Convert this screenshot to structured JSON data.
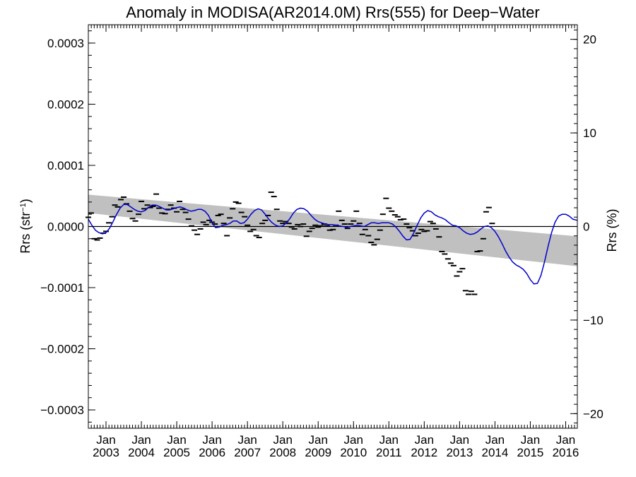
{
  "chart_data": {
    "type": "line",
    "title": "Anomaly in MODISA(AR2014.0M) Rrs(555) for Deep−Water",
    "ylabel_left": {
      "base": "Rrs (str",
      "sup": "−1",
      "close": ")"
    },
    "ylabel_right": "Rrs (%)",
    "x_range": [
      2002.5,
      2016.33
    ],
    "ylim_left": [
      -0.00033,
      0.00033
    ],
    "ylim_right": [
      -21.56,
      21.56
    ],
    "left_ticks": [
      {
        "value": 0.0003,
        "label": "0.0003"
      },
      {
        "value": 0.0002,
        "label": "0.0002"
      },
      {
        "value": 0.0001,
        "label": "0.0001"
      },
      {
        "value": 0.0,
        "label": "0.0000"
      },
      {
        "value": -0.0001,
        "label": "−0.0001"
      },
      {
        "value": -0.0002,
        "label": "−0.0002"
      },
      {
        "value": -0.0003,
        "label": "−0.0003"
      }
    ],
    "right_ticks": [
      {
        "value": 20,
        "label": "20"
      },
      {
        "value": 10,
        "label": "10"
      },
      {
        "value": 0,
        "label": "0"
      },
      {
        "value": -10,
        "label": "−10"
      },
      {
        "value": -20,
        "label": "−20"
      }
    ],
    "x_ticks": [
      {
        "value": 2003,
        "month": "Jan",
        "year": "2003"
      },
      {
        "value": 2004,
        "month": "Jan",
        "year": "2004"
      },
      {
        "value": 2005,
        "month": "Jan",
        "year": "2005"
      },
      {
        "value": 2006,
        "month": "Jan",
        "year": "2006"
      },
      {
        "value": 2007,
        "month": "Jan",
        "year": "2007"
      },
      {
        "value": 2008,
        "month": "Jan",
        "year": "2008"
      },
      {
        "value": 2009,
        "month": "Jan",
        "year": "2009"
      },
      {
        "value": 2010,
        "month": "Jan",
        "year": "2010"
      },
      {
        "value": 2011,
        "month": "Jan",
        "year": "2011"
      },
      {
        "value": 2012,
        "month": "Jan",
        "year": "2012"
      },
      {
        "value": 2013,
        "month": "Jan",
        "year": "2013"
      },
      {
        "value": 2014,
        "month": "Jan",
        "year": "2014"
      },
      {
        "value": 2015,
        "month": "Jan",
        "year": "2015"
      },
      {
        "value": 2016,
        "month": "Jan",
        "year": "2016"
      }
    ],
    "trend_band": {
      "color": "#c0c0c0",
      "upper": [
        [
          2002.5,
          5.2e-05
        ],
        [
          2016.33,
          -1.6e-05
        ]
      ],
      "lower": [
        [
          2002.5,
          2.2e-05
        ],
        [
          2016.33,
          -6.5e-05
        ]
      ]
    },
    "zero_line": {
      "value": 0.0,
      "color": "#000000"
    },
    "smoothed": {
      "color": "#0000cc",
      "points": [
        [
          2002.5,
          1.2e-05
        ],
        [
          2002.6,
          2e-06
        ],
        [
          2002.7,
          -6e-06
        ],
        [
          2002.8,
          -1e-05
        ],
        [
          2002.9,
          -1.2e-05
        ],
        [
          2003.0,
          -1e-05
        ],
        [
          2003.1,
          -3e-06
        ],
        [
          2003.2,
          8e-06
        ],
        [
          2003.3,
          2e-05
        ],
        [
          2003.4,
          3e-05
        ],
        [
          2003.5,
          3.6e-05
        ],
        [
          2003.6,
          3.6e-05
        ],
        [
          2003.7,
          3.2e-05
        ],
        [
          2003.8,
          2.8e-05
        ],
        [
          2003.9,
          2.5e-05
        ],
        [
          2004.0,
          2.4e-05
        ],
        [
          2004.1,
          2.6e-05
        ],
        [
          2004.2,
          3.1e-05
        ],
        [
          2004.3,
          3.5e-05
        ],
        [
          2004.4,
          3.5e-05
        ],
        [
          2004.5,
          3.3e-05
        ],
        [
          2004.6,
          3e-05
        ],
        [
          2004.7,
          2.7e-05
        ],
        [
          2004.8,
          2.7e-05
        ],
        [
          2004.9,
          2.9e-05
        ],
        [
          2005.0,
          3.1e-05
        ],
        [
          2005.1,
          3.2e-05
        ],
        [
          2005.2,
          3e-05
        ],
        [
          2005.3,
          2.7e-05
        ],
        [
          2005.4,
          2.5e-05
        ],
        [
          2005.5,
          2.6e-05
        ],
        [
          2005.6,
          2.8e-05
        ],
        [
          2005.7,
          2.8e-05
        ],
        [
          2005.8,
          2.5e-05
        ],
        [
          2005.9,
          1.8e-05
        ],
        [
          2006.0,
          6e-06
        ],
        [
          2006.1,
          -2e-06
        ],
        [
          2006.2,
          -1e-06
        ],
        [
          2006.3,
          2e-06
        ],
        [
          2006.4,
          3e-06
        ],
        [
          2006.5,
          5e-06
        ],
        [
          2006.6,
          9e-06
        ],
        [
          2006.7,
          9e-06
        ],
        [
          2006.8,
          5e-06
        ],
        [
          2006.9,
          6e-06
        ],
        [
          2007.0,
          1.2e-05
        ],
        [
          2007.1,
          2e-05
        ],
        [
          2007.2,
          2.6e-05
        ],
        [
          2007.3,
          2.9e-05
        ],
        [
          2007.4,
          2.7e-05
        ],
        [
          2007.5,
          2e-05
        ],
        [
          2007.6,
          1.2e-05
        ],
        [
          2007.7,
          6e-06
        ],
        [
          2007.8,
          2e-06
        ],
        [
          2007.9,
          0.0
        ],
        [
          2008.0,
          1e-06
        ],
        [
          2008.1,
          6e-06
        ],
        [
          2008.2,
          1.3e-05
        ],
        [
          2008.3,
          2.2e-05
        ],
        [
          2008.4,
          2.8e-05
        ],
        [
          2008.5,
          3e-05
        ],
        [
          2008.6,
          2.9e-05
        ],
        [
          2008.7,
          2.5e-05
        ],
        [
          2008.8,
          1.8e-05
        ],
        [
          2008.9,
          1.2e-05
        ],
        [
          2009.0,
          8e-06
        ],
        [
          2009.1,
          6e-06
        ],
        [
          2009.2,
          4e-06
        ],
        [
          2009.3,
          3e-06
        ],
        [
          2009.4,
          3e-06
        ],
        [
          2009.5,
          2e-06
        ],
        [
          2009.6,
          1e-06
        ],
        [
          2009.7,
          0.0
        ],
        [
          2009.8,
          -1e-06
        ],
        [
          2009.9,
          0.0
        ],
        [
          2010.0,
          1e-06
        ],
        [
          2010.1,
          2e-06
        ],
        [
          2010.2,
          1e-06
        ],
        [
          2010.3,
          0.0
        ],
        [
          2010.4,
          3e-06
        ],
        [
          2010.5,
          6e-06
        ],
        [
          2010.6,
          6e-06
        ],
        [
          2010.7,
          5e-06
        ],
        [
          2010.8,
          6e-06
        ],
        [
          2010.9,
          6e-06
        ],
        [
          2011.0,
          6e-06
        ],
        [
          2011.1,
          4e-06
        ],
        [
          2011.2,
          -1e-06
        ],
        [
          2011.3,
          -8e-06
        ],
        [
          2011.4,
          -1.6e-05
        ],
        [
          2011.5,
          -2.2e-05
        ],
        [
          2011.6,
          -2.1e-05
        ],
        [
          2011.7,
          -1.1e-05
        ],
        [
          2011.8,
          2e-06
        ],
        [
          2011.9,
          1.4e-05
        ],
        [
          2012.0,
          2.2e-05
        ],
        [
          2012.1,
          2.6e-05
        ],
        [
          2012.2,
          2.4e-05
        ],
        [
          2012.3,
          1.9e-05
        ],
        [
          2012.4,
          1.6e-05
        ],
        [
          2012.5,
          1.4e-05
        ],
        [
          2012.6,
          1.1e-05
        ],
        [
          2012.7,
          6e-06
        ],
        [
          2012.8,
          2e-06
        ],
        [
          2012.9,
          1e-06
        ],
        [
          2013.0,
          -2e-06
        ],
        [
          2013.1,
          -7e-06
        ],
        [
          2013.2,
          -1.1e-05
        ],
        [
          2013.3,
          -1.3e-05
        ],
        [
          2013.4,
          -1.2e-05
        ],
        [
          2013.5,
          -9e-06
        ],
        [
          2013.6,
          -4e-06
        ],
        [
          2013.7,
          0.0
        ],
        [
          2013.8,
          1e-06
        ],
        [
          2013.9,
          -2e-06
        ],
        [
          2014.0,
          -8e-06
        ],
        [
          2014.1,
          -1.7e-05
        ],
        [
          2014.2,
          -2.8e-05
        ],
        [
          2014.3,
          -4e-05
        ],
        [
          2014.4,
          -5e-05
        ],
        [
          2014.5,
          -5.8e-05
        ],
        [
          2014.6,
          -6.3e-05
        ],
        [
          2014.7,
          -6.6e-05
        ],
        [
          2014.8,
          -7e-05
        ],
        [
          2014.9,
          -7.7e-05
        ],
        [
          2015.0,
          -8.7e-05
        ],
        [
          2015.1,
          -9.4e-05
        ],
        [
          2015.2,
          -9.3e-05
        ],
        [
          2015.3,
          -8e-05
        ],
        [
          2015.4,
          -5.8e-05
        ],
        [
          2015.5,
          -3.3e-05
        ],
        [
          2015.6,
          -1e-05
        ],
        [
          2015.7,
          7e-06
        ],
        [
          2015.8,
          1.7e-05
        ],
        [
          2015.9,
          2e-05
        ],
        [
          2016.0,
          2e-05
        ],
        [
          2016.1,
          1.7e-05
        ],
        [
          2016.2,
          1.2e-05
        ],
        [
          2016.33,
          1e-05
        ]
      ]
    },
    "monthly": {
      "color": "#000000",
      "points": [
        [
          2002.5,
          1.5e-05
        ],
        [
          2002.58,
          2.2e-05
        ],
        [
          2002.67,
          -2e-05
        ],
        [
          2002.75,
          -2.2e-05
        ],
        [
          2002.83,
          -1.9e-05
        ],
        [
          2002.92,
          -1.1e-05
        ],
        [
          2003.0,
          -8e-06
        ],
        [
          2003.08,
          6e-06
        ],
        [
          2003.17,
          1.6e-05
        ],
        [
          2003.25,
          3.5e-05
        ],
        [
          2003.33,
          3.2e-05
        ],
        [
          2003.42,
          4.4e-05
        ],
        [
          2003.5,
          4.8e-05
        ],
        [
          2003.58,
          3.7e-05
        ],
        [
          2003.67,
          2.5e-05
        ],
        [
          2003.75,
          1.3e-05
        ],
        [
          2003.83,
          9e-06
        ],
        [
          2003.92,
          2e-05
        ],
        [
          2004.0,
          4.1e-05
        ],
        [
          2004.08,
          2.9e-05
        ],
        [
          2004.17,
          3.5e-05
        ],
        [
          2004.25,
          3.1e-05
        ],
        [
          2004.33,
          3.3e-05
        ],
        [
          2004.42,
          5.3e-05
        ],
        [
          2004.5,
          3e-05
        ],
        [
          2004.58,
          2.2e-05
        ],
        [
          2004.67,
          2.1e-05
        ],
        [
          2004.75,
          2.8e-05
        ],
        [
          2004.83,
          3.5e-05
        ],
        [
          2004.92,
          3e-05
        ],
        [
          2005.0,
          2.4e-05
        ],
        [
          2005.08,
          4.1e-05
        ],
        [
          2005.17,
          2.8e-05
        ],
        [
          2005.25,
          2.3e-05
        ],
        [
          2005.33,
          1.2e-05
        ],
        [
          2005.42,
          1e-06
        ],
        [
          2005.5,
          -6e-06
        ],
        [
          2005.58,
          -1.3e-05
        ],
        [
          2005.67,
          -4e-06
        ],
        [
          2005.75,
          7e-06
        ],
        [
          2005.83,
          3e-06
        ],
        [
          2005.92,
          1e-05
        ],
        [
          2006.0,
          7e-06
        ],
        [
          2006.08,
          4e-06
        ],
        [
          2006.17,
          1.8e-05
        ],
        [
          2006.25,
          2e-05
        ],
        [
          2006.33,
          5e-06
        ],
        [
          2006.42,
          -1.5e-05
        ],
        [
          2006.5,
          1.4e-05
        ],
        [
          2006.58,
          2.9e-05
        ],
        [
          2006.67,
          4e-05
        ],
        [
          2006.75,
          3.8e-05
        ],
        [
          2006.83,
          2.3e-05
        ],
        [
          2006.92,
          1.6e-05
        ],
        [
          2007.0,
          2e-06
        ],
        [
          2007.08,
          -8e-06
        ],
        [
          2007.17,
          -5e-06
        ],
        [
          2007.25,
          -1.5e-05
        ],
        [
          2007.33,
          -1.8e-05
        ],
        [
          2007.42,
          5e-06
        ],
        [
          2007.5,
          1e-05
        ],
        [
          2007.58,
          1.8e-05
        ],
        [
          2007.67,
          5.6e-05
        ],
        [
          2007.75,
          4.9e-05
        ],
        [
          2007.83,
          2.8e-05
        ],
        [
          2007.92,
          9e-06
        ],
        [
          2008.0,
          5e-06
        ],
        [
          2008.08,
          8e-06
        ],
        [
          2008.17,
          5e-06
        ],
        [
          2008.25,
          -1e-06
        ],
        [
          2008.33,
          -4e-06
        ],
        [
          2008.42,
          3e-06
        ],
        [
          2008.5,
          0.0
        ],
        [
          2008.58,
          4e-06
        ],
        [
          2008.67,
          -1.6e-05
        ],
        [
          2008.75,
          -8e-06
        ],
        [
          2008.83,
          -3e-06
        ],
        [
          2008.92,
          2e-06
        ],
        [
          2009.0,
          -1e-06
        ],
        [
          2009.08,
          1e-06
        ],
        [
          2009.17,
          4e-06
        ],
        [
          2009.25,
          1e-06
        ],
        [
          2009.33,
          -6e-06
        ],
        [
          2009.42,
          -5e-06
        ],
        [
          2009.5,
          2e-06
        ],
        [
          2009.58,
          2.5e-05
        ],
        [
          2009.67,
          1e-05
        ],
        [
          2009.75,
          4e-06
        ],
        [
          2009.83,
          -3e-06
        ],
        [
          2009.92,
          4e-06
        ],
        [
          2010.0,
          9e-06
        ],
        [
          2010.08,
          2.5e-05
        ],
        [
          2010.17,
          5e-06
        ],
        [
          2010.25,
          -1.3e-05
        ],
        [
          2010.33,
          -5e-06
        ],
        [
          2010.42,
          -1.5e-05
        ],
        [
          2010.5,
          -2.6e-05
        ],
        [
          2010.58,
          -3e-05
        ],
        [
          2010.67,
          -2.1e-05
        ],
        [
          2010.75,
          -6e-06
        ],
        [
          2010.83,
          2e-05
        ],
        [
          2010.92,
          4.6e-05
        ],
        [
          2011.0,
          3e-05
        ],
        [
          2011.08,
          2.5e-05
        ],
        [
          2011.17,
          1.9e-05
        ],
        [
          2011.25,
          1.6e-05
        ],
        [
          2011.33,
          1.1e-05
        ],
        [
          2011.42,
          1.2e-05
        ],
        [
          2011.5,
          4e-06
        ],
        [
          2011.58,
          -2e-06
        ],
        [
          2011.67,
          -7e-06
        ],
        [
          2011.75,
          -1.5e-05
        ],
        [
          2011.83,
          -1.1e-05
        ],
        [
          2011.92,
          -5e-06
        ],
        [
          2012.0,
          -8e-06
        ],
        [
          2012.08,
          -7e-06
        ],
        [
          2012.17,
          8e-06
        ],
        [
          2012.25,
          5e-06
        ],
        [
          2012.33,
          -4e-06
        ],
        [
          2012.42,
          -1.7e-05
        ],
        [
          2012.5,
          -4.1e-05
        ],
        [
          2012.58,
          -4.5e-05
        ],
        [
          2012.67,
          -5.3e-05
        ],
        [
          2012.75,
          -6e-05
        ],
        [
          2012.83,
          -6.4e-05
        ],
        [
          2012.92,
          -8.1e-05
        ],
        [
          2013.0,
          -7.4e-05
        ],
        [
          2013.08,
          -6.9e-05
        ],
        [
          2013.17,
          -0.000105
        ],
        [
          2013.25,
          -0.000111
        ],
        [
          2013.33,
          -0.000106
        ],
        [
          2013.42,
          -0.000111
        ],
        [
          2013.5,
          -4.1e-05
        ],
        [
          2013.58,
          -4e-05
        ],
        [
          2013.67,
          -2e-05
        ],
        [
          2013.75,
          2.4e-05
        ],
        [
          2013.83,
          3.1e-05
        ],
        [
          2013.92,
          5e-06
        ]
      ]
    }
  }
}
